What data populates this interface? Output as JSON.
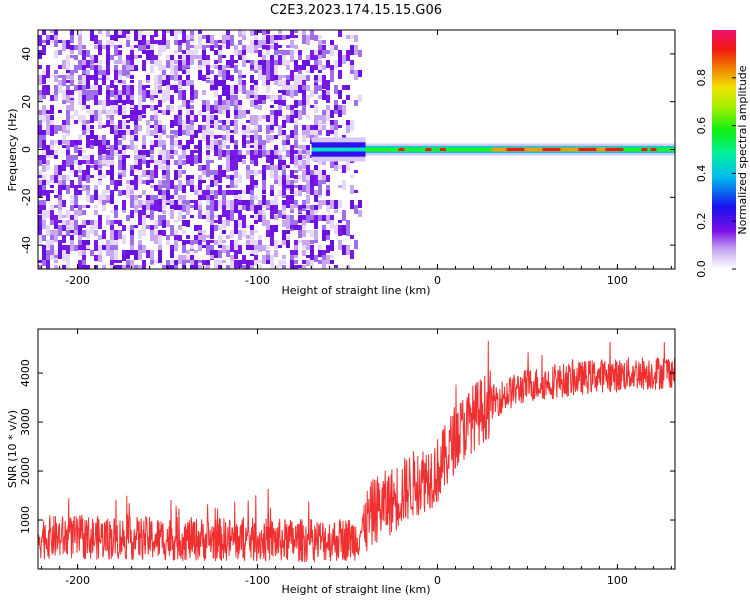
{
  "title": "C2E3.2023.174.15.15.G06",
  "chart_data": [
    {
      "type": "heatmap",
      "xlabel": "Height of straight line (km)",
      "ylabel": "Frequency (Hz)",
      "xlim": [
        -222,
        132
      ],
      "ylim": [
        -50,
        50
      ],
      "xticks": [
        -200,
        -100,
        0,
        100
      ],
      "yticks": [
        -40,
        -20,
        0,
        20,
        40
      ],
      "colorbar": {
        "label": "Normalized spectral amplitude",
        "range": [
          0,
          1
        ],
        "ticks": [
          "0.0",
          "0.2",
          "0.4",
          "0.6",
          "0.8"
        ],
        "colormap": "rainbow"
      },
      "description_regions": {
        "noise_region_x": [
          -222,
          -40
        ],
        "signal_band_center_hz": 0,
        "signal_band_x": [
          -70,
          132
        ]
      }
    },
    {
      "type": "line",
      "xlabel": "Height of straight line (km)",
      "ylabel": "SNR (10 * v/v)",
      "xlim": [
        -222,
        132
      ],
      "ylim": [
        0,
        4900
      ],
      "xticks": [
        -200,
        -100,
        0,
        100
      ],
      "yticks": [
        1000,
        2000,
        3000,
        4000
      ],
      "line_color": "#f03030",
      "series": [
        {
          "x": [
            -222,
            -200,
            -180,
            -160,
            -140,
            -120,
            -100,
            -80,
            -60,
            -45,
            -35,
            -25,
            -15,
            -5,
            0,
            5,
            10,
            20,
            30,
            40,
            50,
            60,
            70,
            80,
            90,
            100,
            110,
            120,
            132
          ],
          "values": [
            650,
            640,
            630,
            620,
            610,
            600,
            590,
            580,
            590,
            620,
            1200,
            1400,
            1700,
            1900,
            2000,
            2300,
            2700,
            3100,
            3400,
            3600,
            3750,
            3800,
            3850,
            3900,
            3950,
            3950,
            4000,
            4000,
            4050
          ]
        }
      ]
    }
  ]
}
